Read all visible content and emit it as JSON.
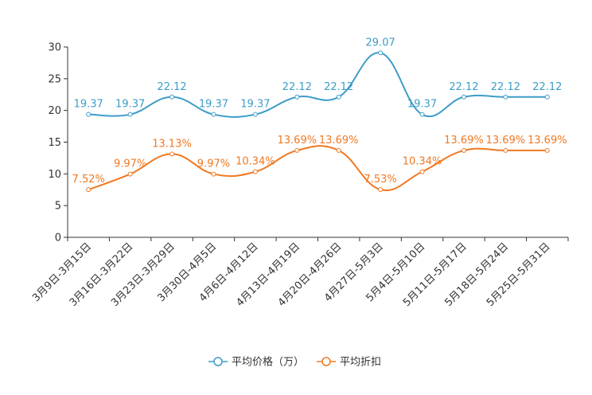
{
  "chart_data": {
    "type": "line",
    "title": "",
    "xlabel": "",
    "ylabel": "",
    "ylim": [
      0,
      30
    ],
    "yticks": [
      "0",
      "5",
      "10",
      "15",
      "20",
      "25",
      "30"
    ],
    "categories": [
      "3月9日-3月15日",
      "3月16日-3月22日",
      "3月23日-3月29日",
      "3月30日-4月5日",
      "4月6日-4月12日",
      "4月13日-4月19日",
      "4月20日-4月26日",
      "4月27日-5月3日",
      "5月4日-5月10日",
      "5月11日-5月17日",
      "5月18日-5月24日",
      "5月25日-5月31日"
    ],
    "series": [
      {
        "name": "平均价格（万）",
        "color": "#3c9cc8",
        "values": [
          19.37,
          19.37,
          22.12,
          19.37,
          19.37,
          22.12,
          22.12,
          29.07,
          19.37,
          22.12,
          22.12,
          22.12
        ],
        "labels": [
          "19.37",
          "19.37",
          "22.12",
          "19.37",
          "19.37",
          "22.12",
          "22.12",
          "29.07",
          "19.37",
          "22.12",
          "22.12",
          "22.12"
        ]
      },
      {
        "name": "平均折扣",
        "color": "#f07820",
        "values": [
          7.52,
          9.97,
          13.13,
          9.97,
          10.34,
          13.69,
          13.69,
          7.53,
          10.34,
          13.69,
          13.69,
          13.69
        ],
        "labels": [
          "7.52%",
          "9.97%",
          "13.13%",
          "9.97%",
          "10.34%",
          "13.69%",
          "13.69%",
          "7.53%",
          "10.34%",
          "13.69%",
          "13.69%",
          "13.69%"
        ]
      }
    ],
    "legend_position": "bottom-center"
  }
}
